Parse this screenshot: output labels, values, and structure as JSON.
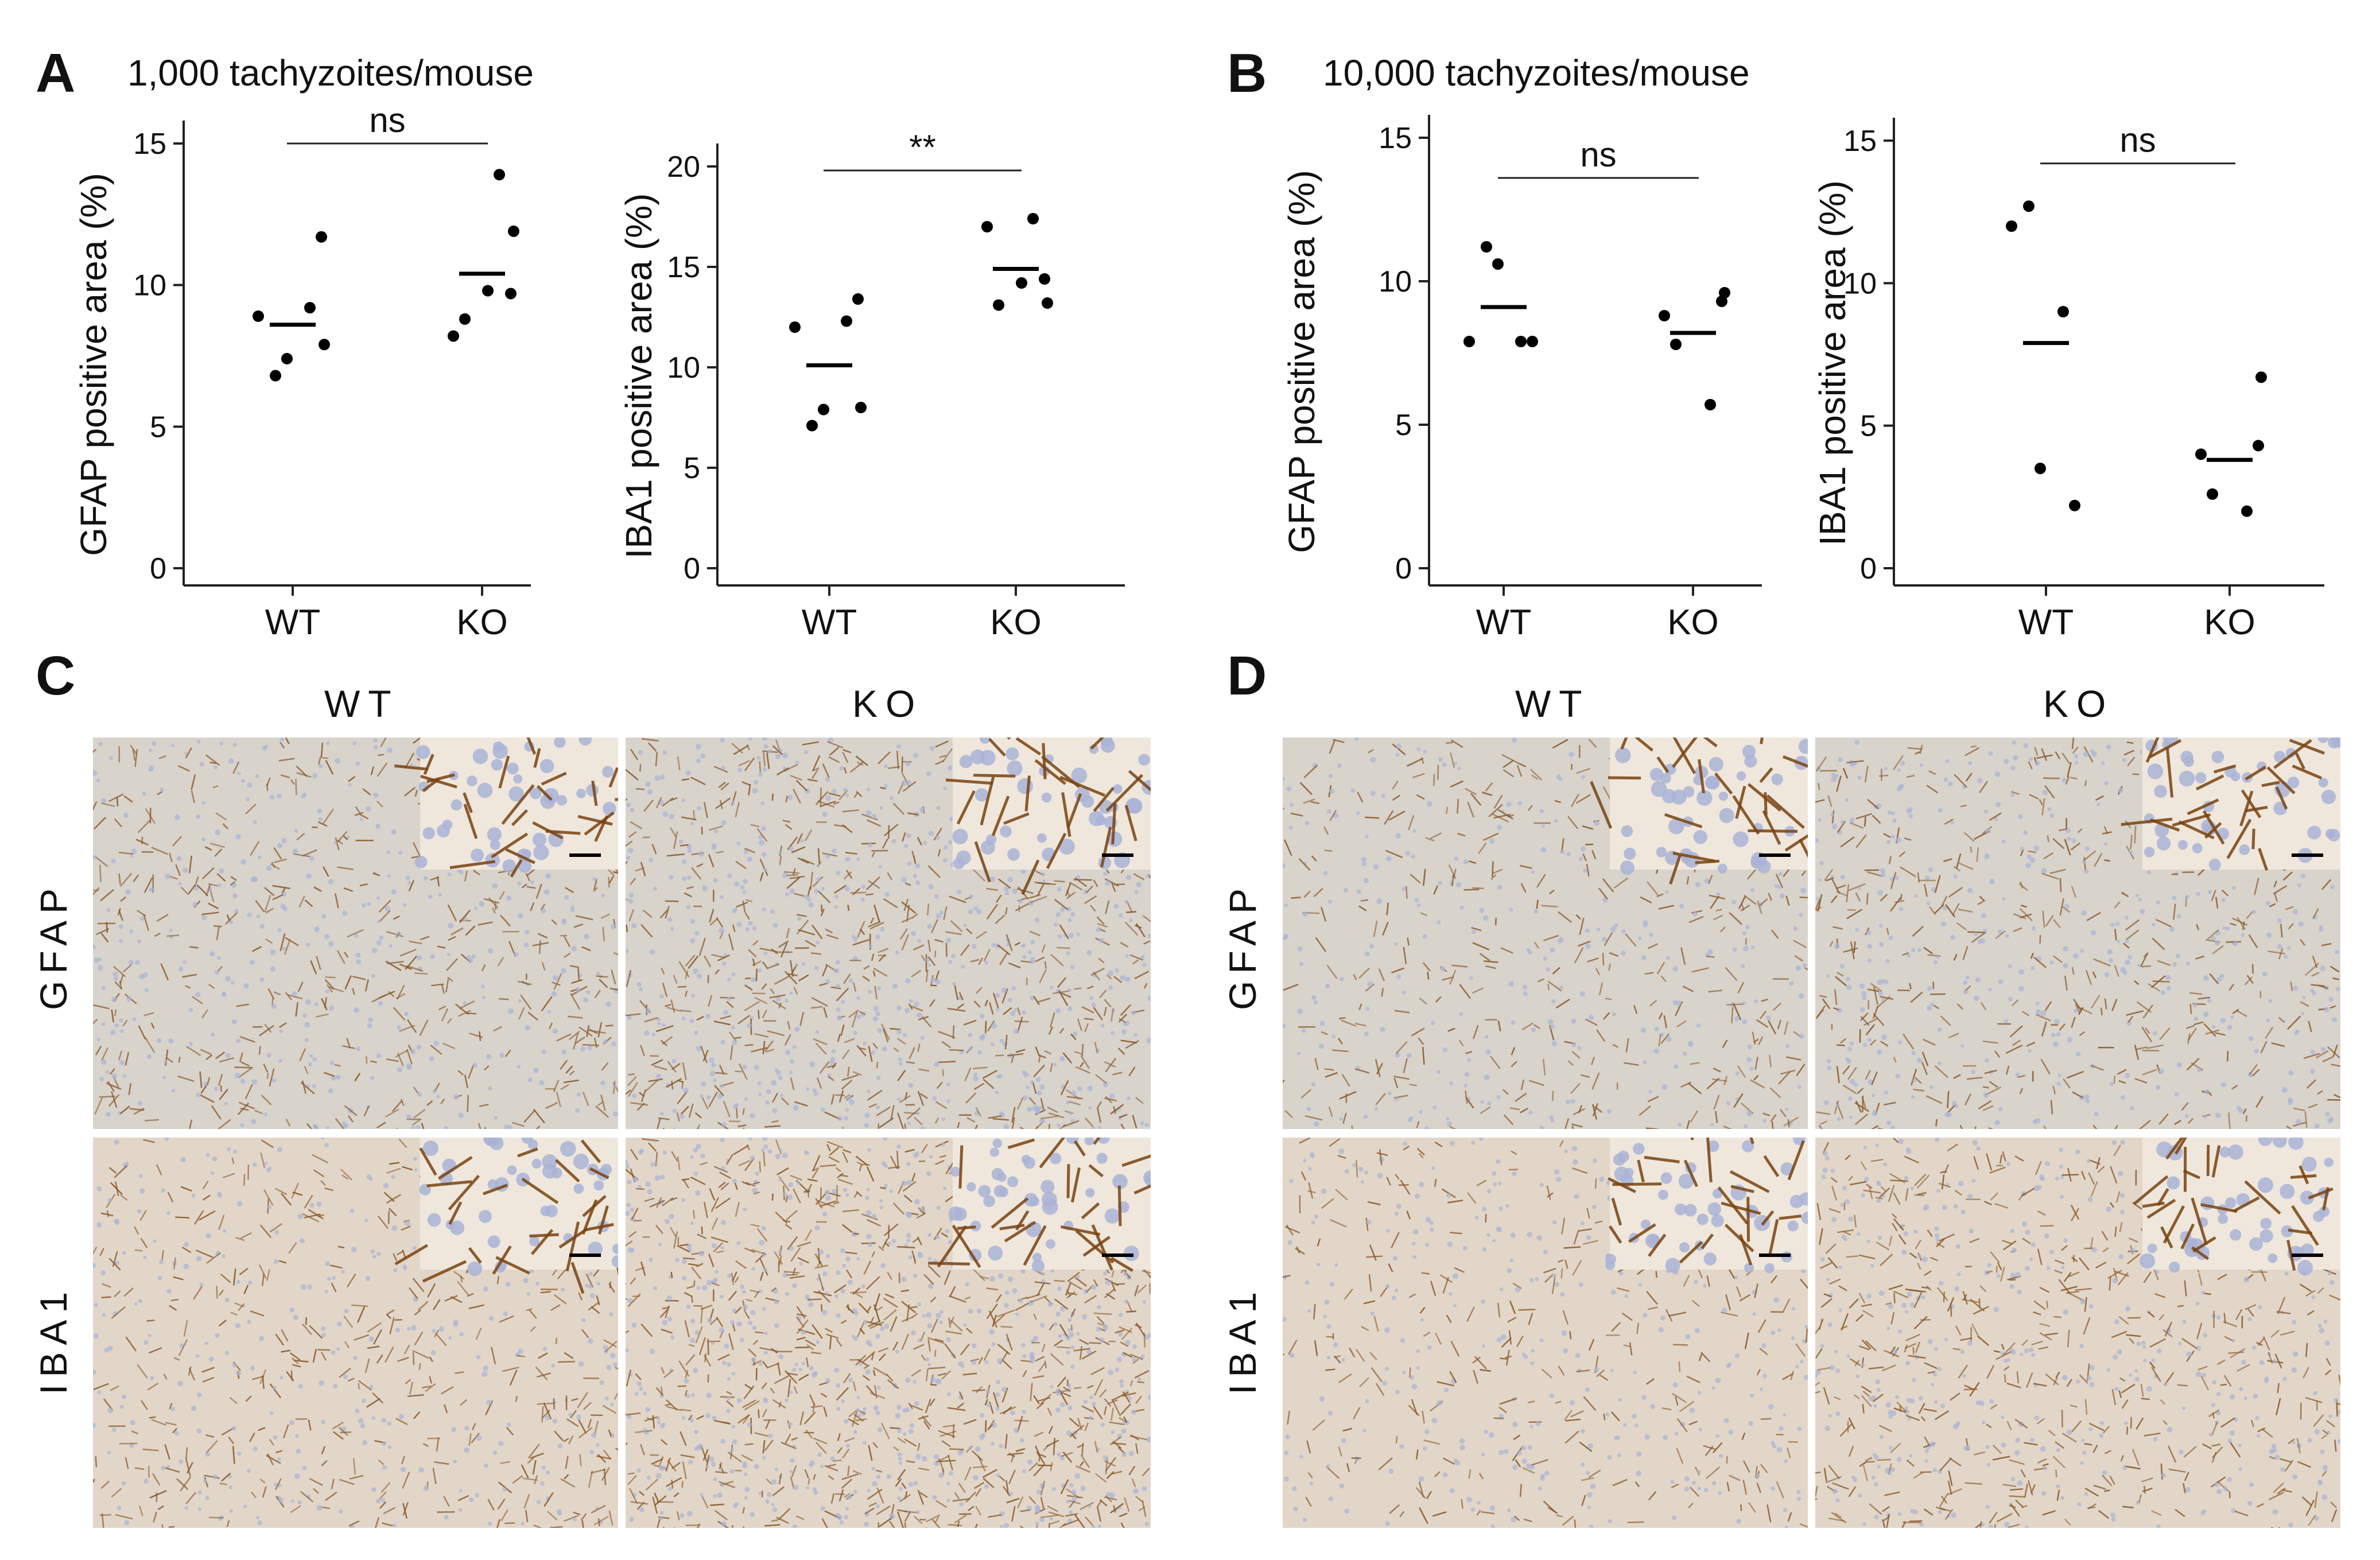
{
  "panels": {
    "A": {
      "letter": "A",
      "title": "1,000 tachyzoites/mouse"
    },
    "B": {
      "letter": "B",
      "title": "10,000 tachyzoites/mouse"
    },
    "C": {
      "letter": "C"
    },
    "D": {
      "letter": "D"
    }
  },
  "histology": {
    "col_labels": [
      "WT",
      "KO"
    ],
    "row_labels": [
      "GFAP",
      "IBA1"
    ],
    "colors": {
      "gfap_bg": "#d8d3cb",
      "iba1_bg": "#e2d6c8",
      "stain_brown": "#8a5a2a",
      "nucleus_blue": "#a9b3d6"
    }
  },
  "chart_data": [
    {
      "type": "scatter",
      "panel": "A",
      "ylabel": "GFAP positive area (%)",
      "categories": [
        "WT",
        "KO"
      ],
      "ylim": [
        0,
        15
      ],
      "yticks": [
        0,
        5,
        10,
        15
      ],
      "points": {
        "WT": [
          8.9,
          7.4,
          11.7,
          6.8,
          9.2,
          7.9
        ],
        "KO": [
          9.7,
          8.8,
          13.9,
          11.9,
          8.2,
          9.8
        ]
      },
      "means": {
        "WT": 8.6,
        "KO": 10.4
      },
      "significance": {
        "label": "ns",
        "y": 15.0
      }
    },
    {
      "type": "scatter",
      "panel": "A",
      "ylabel": "IBA1 positive area (%)",
      "categories": [
        "WT",
        "KO"
      ],
      "ylim": [
        0,
        20
      ],
      "yticks": [
        0,
        5,
        10,
        15,
        20
      ],
      "points": {
        "WT": [
          12.0,
          7.9,
          13.4,
          7.1,
          12.3,
          8.0
        ],
        "KO": [
          14.4,
          13.1,
          17.4,
          13.2,
          17.0,
          14.2
        ]
      },
      "means": {
        "WT": 10.1,
        "KO": 14.9
      },
      "significance": {
        "label": "**",
        "y": 19.8
      }
    },
    {
      "type": "scatter",
      "panel": "B",
      "ylabel": "GFAP positive area (%)",
      "categories": [
        "WT",
        "KO"
      ],
      "ylim": [
        0,
        15
      ],
      "yticks": [
        0,
        5,
        10,
        15
      ],
      "points": {
        "WT": [
          7.9,
          10.6,
          7.9,
          11.2,
          7.9
        ],
        "KO": [
          9.3,
          7.8,
          5.7,
          9.6,
          8.8
        ]
      },
      "means": {
        "WT": 9.1,
        "KO": 8.2
      },
      "significance": {
        "label": "ns",
        "y": 13.6
      }
    },
    {
      "type": "scatter",
      "panel": "B",
      "ylabel": "IBA1 positive area (%)",
      "categories": [
        "WT",
        "KO"
      ],
      "ylim": [
        0,
        15
      ],
      "yticks": [
        0,
        5,
        10,
        15
      ],
      "points": {
        "WT": [
          12.0,
          3.5,
          2.2,
          12.7,
          9.0
        ],
        "KO": [
          4.3,
          2.6,
          2.0,
          6.7,
          4.0
        ]
      },
      "means": {
        "WT": 7.9,
        "KO": 3.8
      },
      "significance": {
        "label": "ns",
        "y": 14.2
      }
    }
  ]
}
